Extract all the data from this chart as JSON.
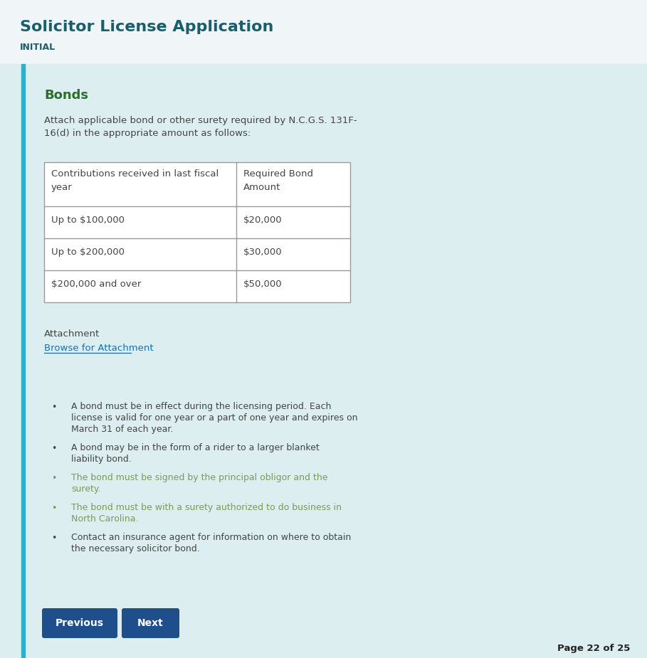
{
  "title": "Solicitor License Application",
  "subtitle": "INITIAL",
  "title_color": "#1a5e6e",
  "subtitle_color": "#1a5e6e",
  "bg_color": "#eef6f7",
  "header_bg_color": "#eef6f7",
  "panel_bg_color": "#dceef0",
  "left_bar_color": "#2ab0c8",
  "section_title": "Bonds",
  "section_title_color": "#2d6e2d",
  "intro_text_color": "#444444",
  "table_text_color": "#444444",
  "table_border_color": "#999999",
  "attachment_label": "Attachment",
  "attachment_link": "Browse for Attachment",
  "attachment_link_color": "#1a6fbd",
  "bullet_colors": [
    "#444444",
    "#444444",
    "#7a9a5e",
    "#7a9a5e",
    "#444444"
  ],
  "btn_color": "#1e4f8c",
  "btn_text_color": "#ffffff",
  "page_text": "Page 22 of 25",
  "page_text_color": "#222222"
}
